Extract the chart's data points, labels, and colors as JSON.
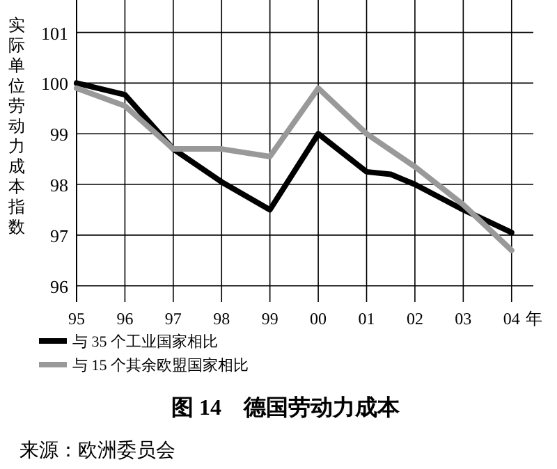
{
  "chart_data": {
    "type": "line",
    "title": "图 14　德国劳动力成本",
    "ylabel": "实际单位劳动力成本指数",
    "xlabel": "年",
    "annotations": [
      "来源：欧洲委员会"
    ],
    "xlim": [
      1995,
      2004.45
    ],
    "ylim": [
      95.68,
      101.64
    ],
    "xticks": [
      {
        "value": 1995,
        "label": "95"
      },
      {
        "value": 1996,
        "label": "96"
      },
      {
        "value": 1997,
        "label": "97"
      },
      {
        "value": 1998,
        "label": "98"
      },
      {
        "value": 1999,
        "label": "99"
      },
      {
        "value": 2000,
        "label": "00"
      },
      {
        "value": 2001,
        "label": "01"
      },
      {
        "value": 2002,
        "label": "02"
      },
      {
        "value": 2003,
        "label": "03"
      },
      {
        "value": 2004,
        "label": "04"
      }
    ],
    "yticks": [
      96,
      97,
      98,
      99,
      100,
      101
    ],
    "grid": true,
    "legend": "bottom left",
    "marker": "none",
    "line_style": "solid",
    "series": [
      {
        "name": "与 35 个工业国家相比",
        "color": "#000000",
        "x": [
          1995,
          1996,
          1997,
          1998,
          1999,
          2000,
          2001,
          2001.5,
          2002,
          2003,
          2004
        ],
        "values": [
          100,
          99.77,
          98.7,
          98.05,
          97.5,
          99.0,
          98.25,
          98.2,
          98.0,
          97.5,
          97.05
        ]
      },
      {
        "name": "与 15 个其余欧盟国家相比",
        "color": "#999999",
        "x": [
          1995,
          1996,
          1997,
          1998,
          1999,
          2000,
          2001,
          2002,
          2003,
          2004
        ],
        "values": [
          99.9,
          99.55,
          98.7,
          98.7,
          98.55,
          99.9,
          99.0,
          98.35,
          97.6,
          96.7
        ]
      }
    ]
  }
}
